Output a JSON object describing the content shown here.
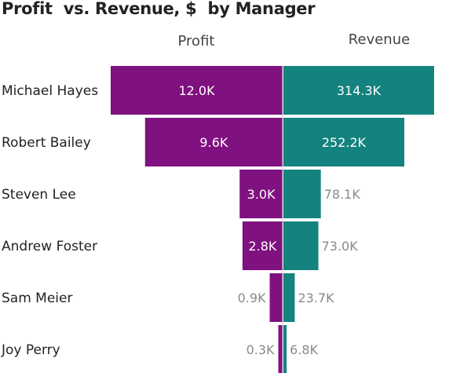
{
  "chart_data": {
    "type": "bar",
    "title": "Profit  vs. Revenue, $  by Manager",
    "categories": [
      "Michael Hayes",
      "Robert Bailey",
      "Steven Lee",
      "Andrew Foster",
      "Sam Meier",
      "Joy Perry"
    ],
    "series": [
      {
        "name": "Profit",
        "values": [
          12.0,
          9.6,
          3.0,
          2.8,
          0.9,
          0.3
        ],
        "labels": [
          "12.0K",
          "9.6K",
          "3.0K",
          "2.8K",
          "0.9K",
          "0.3K"
        ],
        "color": "#801180"
      },
      {
        "name": "Revenue",
        "values": [
          314.3,
          252.2,
          78.1,
          73.0,
          23.7,
          6.8
        ],
        "labels": [
          "314.3K",
          "252.2K",
          "78.1K",
          "73.0K",
          "23.7K",
          "6.8K"
        ],
        "color": "#14827e"
      }
    ],
    "unit": "K"
  }
}
